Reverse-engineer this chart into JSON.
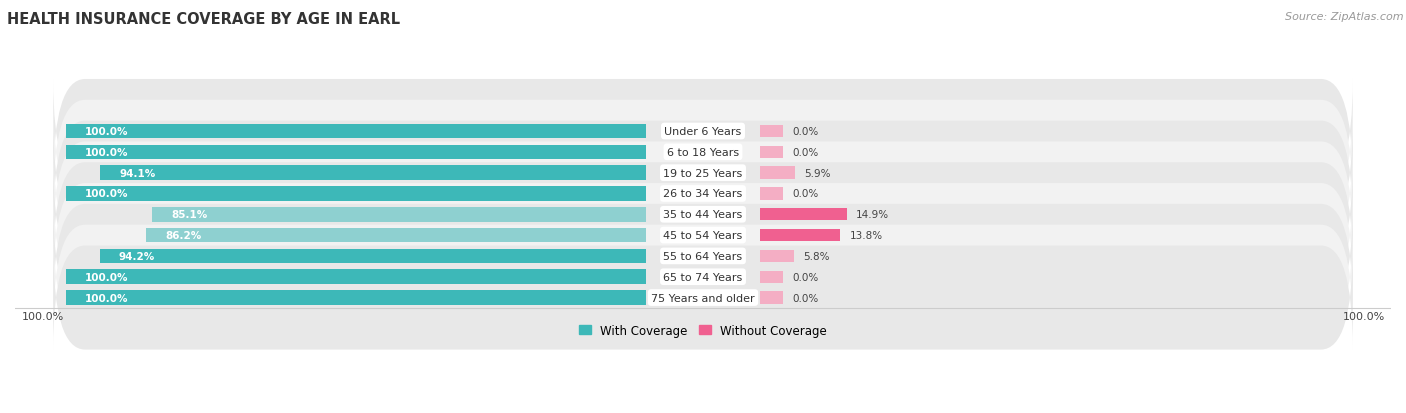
{
  "title": "HEALTH INSURANCE COVERAGE BY AGE IN EARL",
  "source": "Source: ZipAtlas.com",
  "categories": [
    "Under 6 Years",
    "6 to 18 Years",
    "19 to 25 Years",
    "26 to 34 Years",
    "35 to 44 Years",
    "45 to 54 Years",
    "55 to 64 Years",
    "65 to 74 Years",
    "75 Years and older"
  ],
  "with_coverage": [
    100.0,
    100.0,
    94.1,
    100.0,
    85.1,
    86.2,
    94.2,
    100.0,
    100.0
  ],
  "without_coverage": [
    0.0,
    0.0,
    5.9,
    0.0,
    14.9,
    13.8,
    5.8,
    0.0,
    0.0
  ],
  "color_with_dark": "#3db8b8",
  "color_with_light": "#8ed0d0",
  "color_without_dark": "#f06090",
  "color_without_light": "#f4aec4",
  "row_bg_dark": "#e8e8e8",
  "row_bg_light": "#f2f2f2",
  "label_box_color": "#ffffff",
  "title_fontsize": 10.5,
  "source_fontsize": 8,
  "label_fontsize": 8,
  "bar_value_fontsize": 7.5,
  "legend_fontsize": 8.5,
  "left_axis_label": "100.0%",
  "right_axis_label": "100.0%"
}
